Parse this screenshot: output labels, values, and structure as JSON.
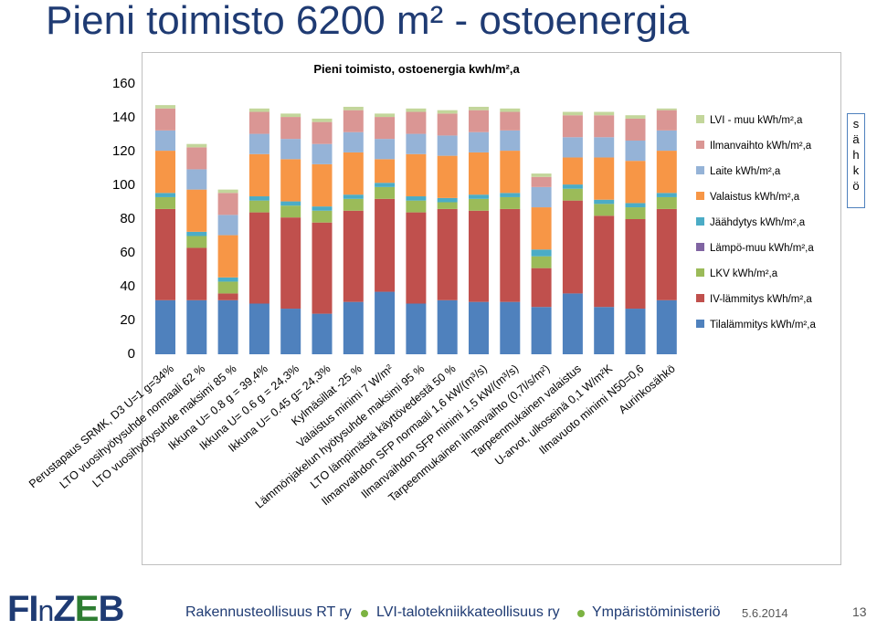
{
  "slide": {
    "title": "Pieni toimisto 6200 m² - ostoenergia",
    "side_text": [
      "s",
      "ä",
      "h",
      "k",
      "ö"
    ],
    "footer": {
      "orgs": [
        "Rakennusteollisuus RT ry",
        "LVI-talotekniikkateollisuus ry",
        "Ympäristöministeriö"
      ],
      "date": "5.6.2014",
      "page": "13",
      "logo": "FInZEB"
    },
    "colors": {
      "title": "#1f3b73",
      "footer_dot": "#7cb342",
      "side_box_border": "#4f81bd"
    }
  },
  "chart_data": {
    "type": "bar",
    "stacked": true,
    "title": "Pieni toimisto, ostoenergia kwh/m²,a",
    "ylim": [
      0,
      160
    ],
    "yticks": [
      0,
      20,
      40,
      60,
      80,
      100,
      120,
      140,
      160
    ],
    "grid": false,
    "legend_position": "right",
    "categories": [
      "Perustapaus SRMK, D3 U=1 g=34%",
      "LTO vuosihyötysuhde normaali 62 %",
      "LTO vuosihyötysuhde maksimi 85 %",
      "Ikkuna U= 0.8 g = 39,4%",
      "Ikkuna U= 0.6 g = 24,3%",
      "Ikkuna U= 0.45 g= 24,3%",
      "Kylmäsillat -25 %",
      "Valaistus minimi 7 W/m²",
      "Lämmönjakelun hyötysuhde maksimi 95 %",
      "LTO lämpimästä käyttövedestä 50 %",
      "Ilmanvaihdon SFP normaali 1,6 kW/(m³/s)",
      "Ilmanvaihdon SFP minimi 1,5 kW/(m³/s)",
      "Tarpeenmukainen ilmanvaihto (0,7l/s/m²)",
      "Tarpeenmukainen valaistus",
      "U-arvot, ulkoseinä 0,1 W/m²K",
      "Ilmavuoto minimi N50=0,6",
      "Aurinkosähkö"
    ],
    "series": [
      {
        "name": "Tilalämmitys kWh/m²,a",
        "color": "#4f81bd",
        "values": [
          32,
          32,
          32,
          30,
          27,
          24,
          31,
          37,
          30,
          32,
          31,
          31,
          28,
          36,
          28,
          27,
          32
        ]
      },
      {
        "name": "IV-lämmitys kWh/m²,a",
        "color": "#c0504d",
        "values": [
          54,
          31,
          4,
          54,
          54,
          54,
          54,
          55,
          54,
          54,
          54,
          55,
          23,
          55,
          54,
          53,
          54
        ]
      },
      {
        "name": "LKV kWh/m²,a",
        "color": "#9bbb59",
        "values": [
          7,
          7,
          7,
          7,
          7,
          7,
          7,
          7,
          7,
          4,
          7,
          7,
          7,
          7,
          7,
          7,
          7
        ]
      },
      {
        "name": "Lämpö-muu kWh/m²,a",
        "color": "#8064a2",
        "values": [
          0,
          0,
          0,
          0,
          0,
          0,
          0,
          0,
          0,
          0,
          0,
          0,
          0,
          0,
          0,
          0,
          0
        ]
      },
      {
        "name": "Jäähdytys kWh/m²,a",
        "color": "#4bacc6",
        "values": [
          2.5,
          2.5,
          2.5,
          2.5,
          2.5,
          2.5,
          2.5,
          2.5,
          2.5,
          2.5,
          2.5,
          2.5,
          4,
          2.5,
          2.5,
          2.5,
          2.5
        ]
      },
      {
        "name": "Valaistus kWh/m²,a",
        "color": "#f79646",
        "values": [
          25,
          25,
          25,
          25,
          25,
          25,
          25,
          14,
          25,
          25,
          25,
          25,
          25,
          16,
          25,
          25,
          25
        ]
      },
      {
        "name": "Laite kWh/m²,a",
        "color": "#95b3d7",
        "values": [
          12,
          12,
          12,
          12,
          12,
          12,
          12,
          12,
          12,
          12,
          12,
          12,
          12,
          12,
          12,
          12,
          12
        ]
      },
      {
        "name": "Ilmanvaihto kWh/m²,a",
        "color": "#da9694",
        "values": [
          13,
          13,
          13,
          13,
          13,
          13,
          13,
          13,
          13,
          13,
          13,
          11,
          6,
          13,
          13,
          13,
          12
        ]
      },
      {
        "name": "LVI - muu kWh/m²,a",
        "color": "#c3d69b",
        "values": [
          2,
          2,
          2,
          2,
          2,
          2,
          2,
          2,
          2,
          2,
          2,
          2,
          2,
          2,
          2,
          2,
          1
        ]
      }
    ],
    "legend_order": [
      "LVI - muu kWh/m²,a",
      "Ilmanvaihto kWh/m²,a",
      "Laite kWh/m²,a",
      "Valaistus kWh/m²,a",
      "Jäähdytys kWh/m²,a",
      "Lämpö-muu kWh/m²,a",
      "LKV kWh/m²,a",
      "IV-lämmitys kWh/m²,a",
      "Tilalämmitys kWh/m²,a"
    ]
  }
}
